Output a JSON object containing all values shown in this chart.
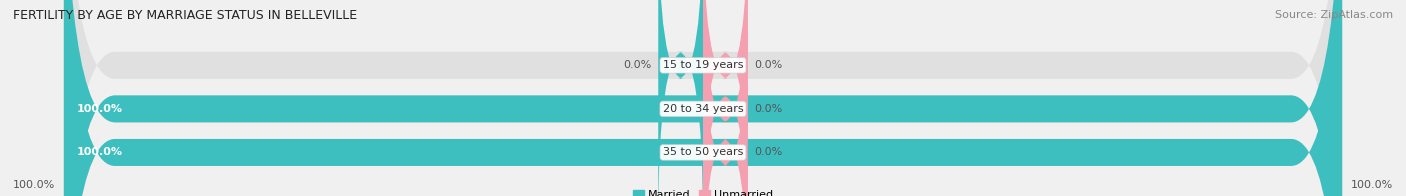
{
  "title": "FERTILITY BY AGE BY MARRIAGE STATUS IN BELLEVILLE",
  "source": "Source: ZipAtlas.com",
  "categories": [
    "15 to 19 years",
    "20 to 34 years",
    "35 to 50 years"
  ],
  "married_values": [
    0.0,
    100.0,
    100.0
  ],
  "unmarried_values": [
    0.0,
    0.0,
    0.0
  ],
  "married_color": "#3dbfbf",
  "unmarried_color": "#f5a0b0",
  "bg_color": "#f0f0f0",
  "bar_bg_color": "#e0e0e0",
  "bar_height": 0.62,
  "title_fontsize": 9,
  "source_fontsize": 8,
  "tick_fontsize": 8,
  "label_fontsize": 8,
  "cat_fontsize": 8,
  "axis_label_left": "100.0%",
  "axis_label_right": "100.0%",
  "legend_married": "Married",
  "legend_unmarried": "Unmarried"
}
